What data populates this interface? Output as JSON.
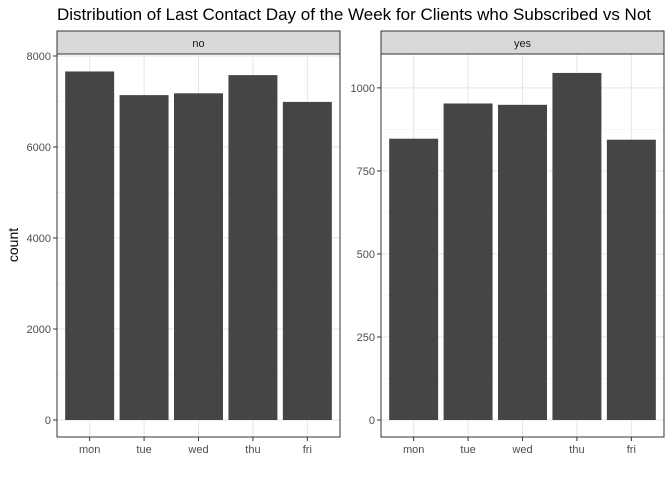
{
  "chart_data": {
    "type": "bar",
    "title": "Distribution of Last Contact Day of the Week for Clients who Subscribed vs Not",
    "xlabel": "",
    "ylabel": "count",
    "grid": true,
    "legend": "none",
    "categories": [
      "mon",
      "tue",
      "wed",
      "thu",
      "fri"
    ],
    "bar_color": "#454545",
    "strip_color": "#d9d9d9",
    "panels": [
      {
        "label": "no",
        "values": [
          7660,
          7140,
          7180,
          7580,
          6990
        ],
        "ylim": [
          0,
          8000
        ],
        "yticks": [
          0,
          2000,
          4000,
          6000,
          8000
        ]
      },
      {
        "label": "yes",
        "values": [
          847,
          953,
          949,
          1045,
          844
        ],
        "ylim": [
          0,
          1096
        ],
        "yticks": [
          0,
          250,
          500,
          750,
          1000
        ]
      }
    ]
  }
}
